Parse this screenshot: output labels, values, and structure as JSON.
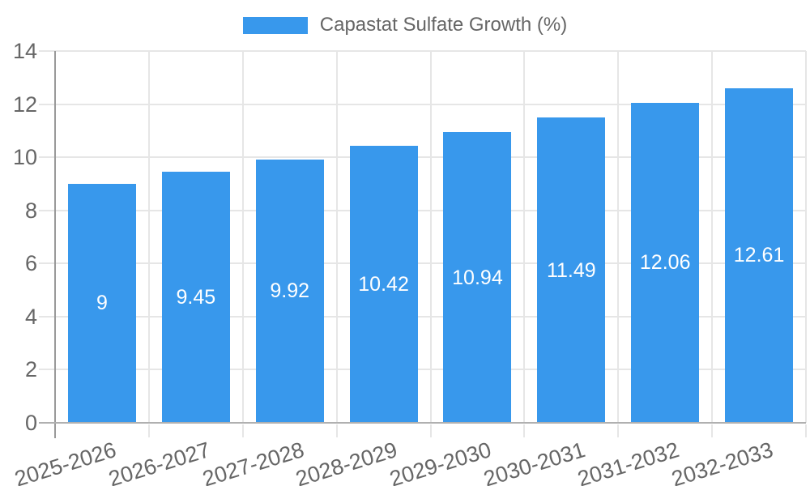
{
  "chart_data": {
    "type": "bar",
    "title": "",
    "legend_label": "Capastat Sulfate Growth (%)",
    "legend_position": "top",
    "categories": [
      "2025-2026",
      "2026-2027",
      "2027-2028",
      "2028-2029",
      "2029-2030",
      "2030-2031",
      "2031-2032",
      "2032-2033"
    ],
    "values": [
      9,
      9.45,
      9.92,
      10.42,
      10.94,
      11.49,
      12.06,
      12.61
    ],
    "bar_labels": [
      "9",
      "9.45",
      "9.92",
      "10.42",
      "10.94",
      "11.49",
      "12.06",
      "12.61"
    ],
    "xlabel": "",
    "ylabel": "",
    "ylim": [
      0,
      14
    ],
    "yticks": [
      0,
      2,
      4,
      6,
      8,
      10,
      12,
      14
    ],
    "grid": true,
    "colors": {
      "bar": "#3898ec",
      "grid": "#e6e6e6",
      "x_axis": "#b0b0b0",
      "y_axis": "#999999",
      "tick_label": "#666666",
      "legend_label": "#666666",
      "bar_label": "#ffffff",
      "background": "#ffffff"
    }
  }
}
